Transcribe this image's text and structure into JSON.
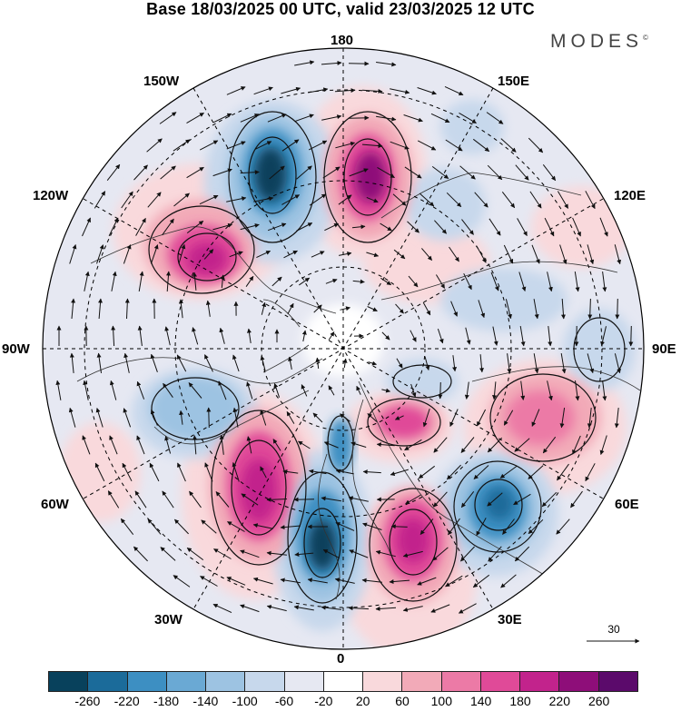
{
  "title": "Base 18/03/2025 00 UTC, valid 23/03/2025 12 UTC",
  "logo": "MODES",
  "logo_mark": "©",
  "longitude_labels": {
    "lon_180": "180",
    "lon_150e": "150E",
    "lon_120e": "120E",
    "lon_90e": "90E",
    "lon_60e": "60E",
    "lon_30e": "30E",
    "lon_0": "0",
    "lon_30w": "30W",
    "lon_60w": "60W",
    "lon_90w": "90W",
    "lon_120w": "120W",
    "lon_150w": "150W"
  },
  "reference_vector": "30",
  "colorbar": {
    "colors": [
      "#08415c",
      "#1b6b9a",
      "#3d8fc2",
      "#6aa9d4",
      "#9dc3e2",
      "#c7d8ec",
      "#e6e8f2",
      "#ffffff",
      "#f9d9dc",
      "#f2aab8",
      "#ec7aa6",
      "#e04a98",
      "#c2238c",
      "#8e0e79",
      "#5b0a6b"
    ],
    "tick_labels": [
      "-260",
      "-220",
      "-180",
      "-140",
      "-100",
      "-60",
      "-20",
      "20",
      "60",
      "100",
      "140",
      "180",
      "220",
      "260"
    ]
  },
  "colors": {
    "neg_strong": "#08415c",
    "neg_mid": "#3d8fc2",
    "neg_weak": "#c7d8ec",
    "pos_weak": "#f2aab8",
    "pos_mid": "#e04a98",
    "pos_strong": "#8e0e79"
  }
}
